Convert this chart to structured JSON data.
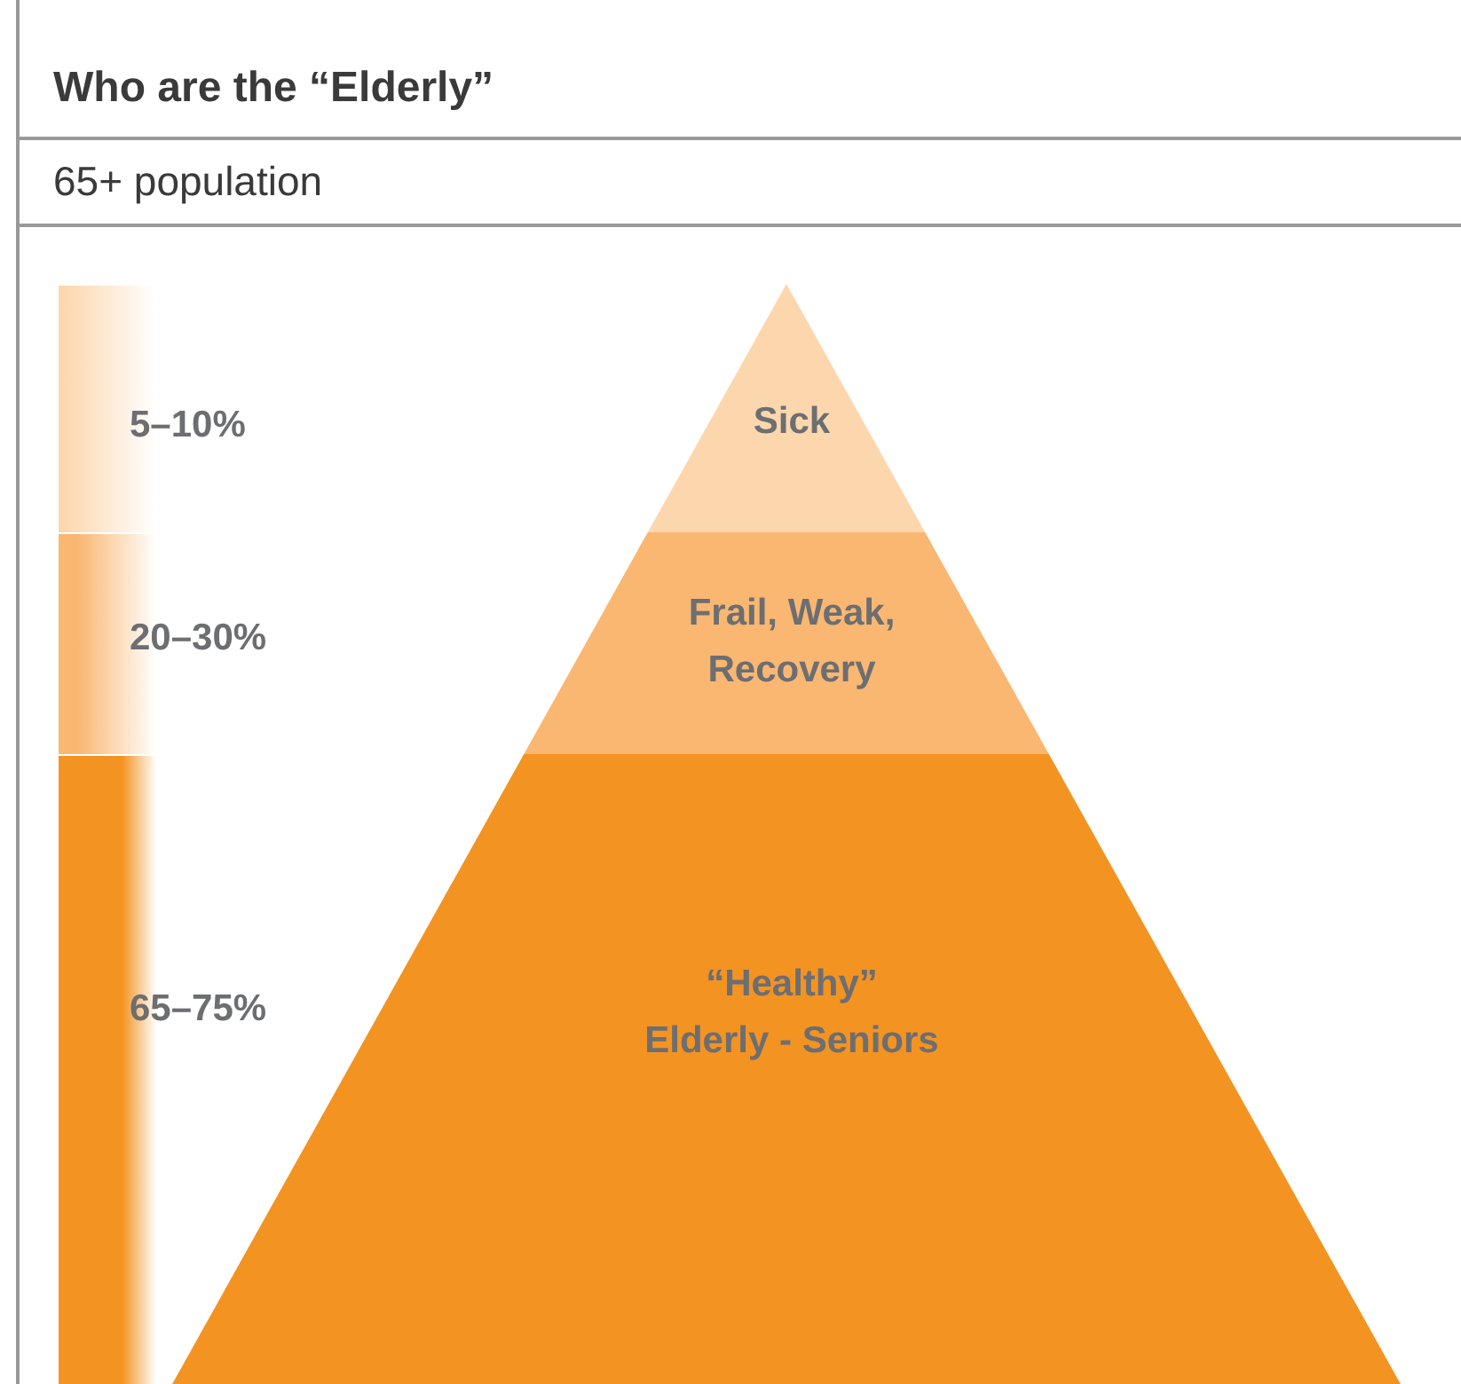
{
  "chart_data": {
    "type": "other",
    "title": "Who are the “Elderly”",
    "subtitle": "65+ population",
    "categories": [
      "Sick",
      "Frail, Weak,\nRecovery",
      "“Healthy”\nElderly - Seniors"
    ],
    "values": [
      5,
      20,
      65
    ],
    "value_labels": [
      "5–10%",
      "20–30%",
      "65–75%"
    ],
    "colors": [
      "#fcd7ae",
      "#f9b772",
      "#f39322"
    ]
  }
}
